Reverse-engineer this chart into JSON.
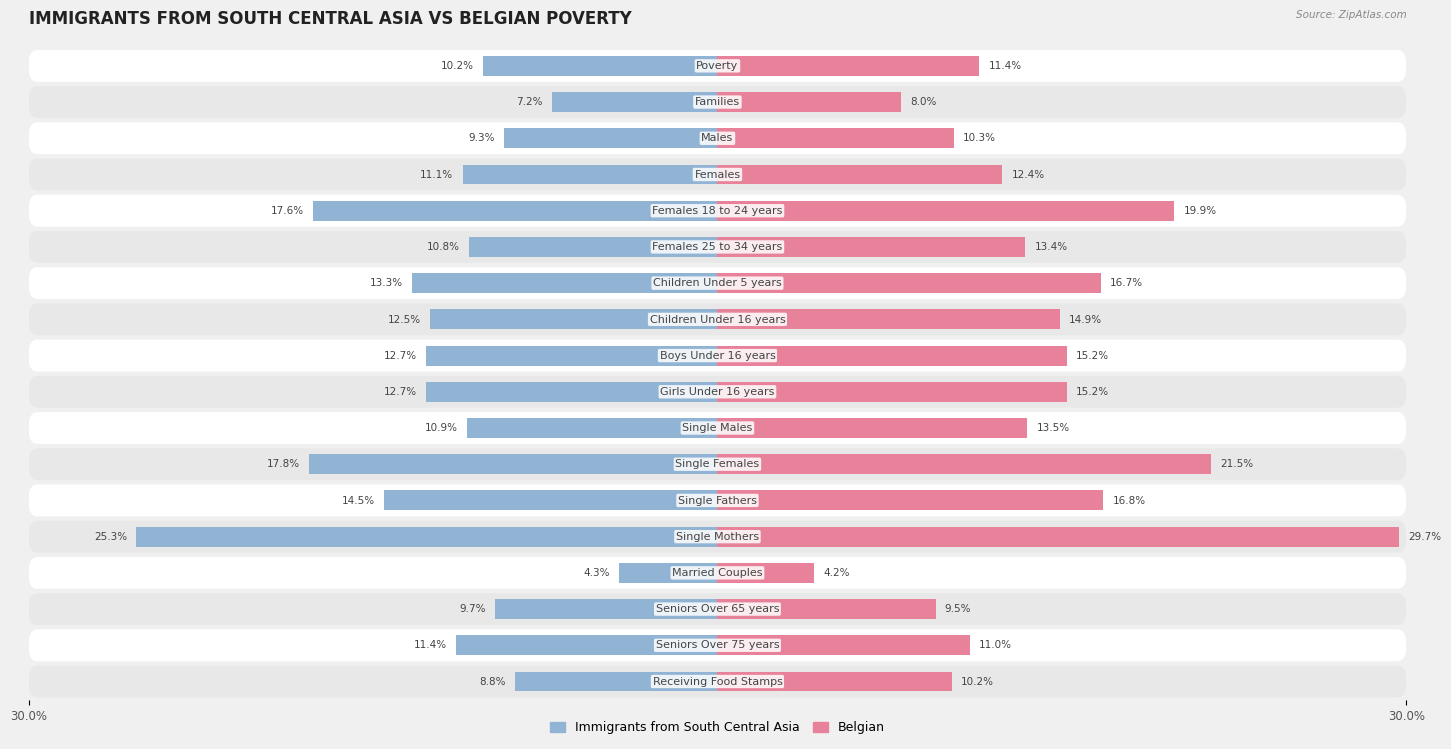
{
  "title": "IMMIGRANTS FROM SOUTH CENTRAL ASIA VS BELGIAN POVERTY",
  "source": "Source: ZipAtlas.com",
  "categories": [
    "Poverty",
    "Families",
    "Males",
    "Females",
    "Females 18 to 24 years",
    "Females 25 to 34 years",
    "Children Under 5 years",
    "Children Under 16 years",
    "Boys Under 16 years",
    "Girls Under 16 years",
    "Single Males",
    "Single Females",
    "Single Fathers",
    "Single Mothers",
    "Married Couples",
    "Seniors Over 65 years",
    "Seniors Over 75 years",
    "Receiving Food Stamps"
  ],
  "left_values": [
    10.2,
    7.2,
    9.3,
    11.1,
    17.6,
    10.8,
    13.3,
    12.5,
    12.7,
    12.7,
    10.9,
    17.8,
    14.5,
    25.3,
    4.3,
    9.7,
    11.4,
    8.8
  ],
  "right_values": [
    11.4,
    8.0,
    10.3,
    12.4,
    19.9,
    13.4,
    16.7,
    14.9,
    15.2,
    15.2,
    13.5,
    21.5,
    16.8,
    29.7,
    4.2,
    9.5,
    11.0,
    10.2
  ],
  "left_color": "#92b4d4",
  "right_color": "#e8829a",
  "label_left": "Immigrants from South Central Asia",
  "label_right": "Belgian",
  "axis_max": 30.0,
  "bar_height": 0.55,
  "bg_color": "#f0f0f0",
  "row_odd_color": "#ffffff",
  "row_even_color": "#e8e8e8",
  "title_fontsize": 12,
  "label_fontsize": 8,
  "value_fontsize": 7.5,
  "axis_label_fontsize": 8.5
}
